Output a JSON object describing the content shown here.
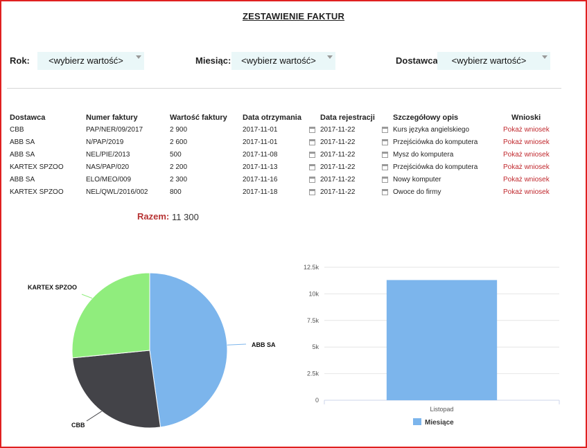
{
  "page": {
    "title": "ZESTAWIENIE FAKTUR"
  },
  "filters": {
    "year": {
      "label": "Rok:",
      "value": "<wybierz wartość>"
    },
    "month": {
      "label": "Miesiąc:",
      "value": "<wybierz wartość>"
    },
    "supplier": {
      "label": "Dostawca",
      "value": "<wybierz wartość>"
    }
  },
  "table": {
    "headers": [
      "Dostawca",
      "Numer faktury",
      "Wartość faktury",
      "Data otrzymania",
      "Data rejestracji",
      "Szczegółowy opis",
      "Wnioski"
    ],
    "rows": [
      [
        "CBB",
        "PAP/NER/09/2017",
        "2 900",
        "2017-11-01",
        "2017-11-22",
        "Kurs języka angielskiego",
        "Pokaż wniosek"
      ],
      [
        "ABB SA",
        "N/PAP/2019",
        "2 600",
        "2017-11-01",
        "2017-11-22",
        "Przejściówka do komputera",
        "Pokaż wniosek"
      ],
      [
        "ABB SA",
        "NEL/PIE/2013",
        "500",
        "2017-11-08",
        "2017-11-22",
        "Mysz do komputera",
        "Pokaż wniosek"
      ],
      [
        "KARTEX SPZOO",
        "NAS/PAP/020",
        "2 200",
        "2017-11-13",
        "2017-11-22",
        "Przejściówka do komputera",
        "Pokaż wniosek"
      ],
      [
        "ABB SA",
        "ELO/MEO/009",
        "2 300",
        "2017-11-16",
        "2017-11-22",
        "Nowy komputer",
        "Pokaż wniosek"
      ],
      [
        "KARTEX SPZOO",
        "NEL/QWL/2016/002",
        "800",
        "2017-11-18",
        "2017-11-22",
        "Owoce do firmy",
        "Pokaż wniosek"
      ]
    ]
  },
  "summary": {
    "label": "Razem:",
    "value": "11 300"
  },
  "colors": {
    "accent_red": "#c0282d",
    "pie_abb": "#7cb5ec",
    "pie_cbb": "#434348",
    "pie_kartex": "#90ed7d",
    "bar": "#7cb5ec"
  },
  "chart_data": [
    {
      "type": "pie",
      "labels": [
        "ABB SA",
        "CBB",
        "KARTEX SPZOO"
      ],
      "values": [
        5400,
        2900,
        3000
      ],
      "colors": [
        "#7cb5ec",
        "#434348",
        "#90ed7d"
      ]
    },
    {
      "type": "bar",
      "categories": [
        "Listopad"
      ],
      "series": [
        {
          "name": "Miesiące",
          "values": [
            11300
          ]
        }
      ],
      "ylim": [
        0,
        12500
      ],
      "yticks": [
        "0",
        "2.5k",
        "5k",
        "7.5k",
        "10k",
        "12.5k"
      ],
      "yticks_values": [
        0,
        2500,
        5000,
        7500,
        10000,
        12500
      ],
      "grid": true,
      "legend": "bottom"
    }
  ]
}
